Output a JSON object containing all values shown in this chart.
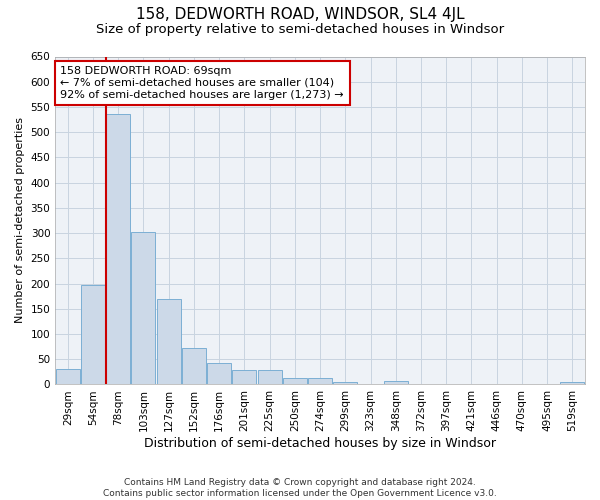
{
  "title": "158, DEDWORTH ROAD, WINDSOR, SL4 4JL",
  "subtitle": "Size of property relative to semi-detached houses in Windsor",
  "xlabel": "Distribution of semi-detached houses by size in Windsor",
  "ylabel": "Number of semi-detached properties",
  "bar_color": "#ccd9e8",
  "bar_edge_color": "#7bafd4",
  "vline_color": "#cc0000",
  "vline_x_index": 2,
  "annotation_text": "158 DEDWORTH ROAD: 69sqm\n← 7% of semi-detached houses are smaller (104)\n92% of semi-detached houses are larger (1,273) →",
  "annotation_box_color": "#ffffff",
  "annotation_box_edge": "#cc0000",
  "categories": [
    "29sqm",
    "54sqm",
    "78sqm",
    "103sqm",
    "127sqm",
    "152sqm",
    "176sqm",
    "201sqm",
    "225sqm",
    "250sqm",
    "274sqm",
    "299sqm",
    "323sqm",
    "348sqm",
    "372sqm",
    "397sqm",
    "421sqm",
    "446sqm",
    "470sqm",
    "495sqm",
    "519sqm"
  ],
  "values": [
    30,
    197,
    537,
    302,
    170,
    73,
    42,
    28,
    28,
    12,
    12,
    5,
    0,
    7,
    0,
    0,
    0,
    0,
    0,
    0,
    5
  ],
  "ylim": [
    0,
    650
  ],
  "yticks": [
    0,
    50,
    100,
    150,
    200,
    250,
    300,
    350,
    400,
    450,
    500,
    550,
    600,
    650
  ],
  "grid_color": "#c8d4e0",
  "background_color": "#eef2f7",
  "footer": "Contains HM Land Registry data © Crown copyright and database right 2024.\nContains public sector information licensed under the Open Government Licence v3.0.",
  "title_fontsize": 11,
  "subtitle_fontsize": 9.5,
  "xlabel_fontsize": 9,
  "ylabel_fontsize": 8,
  "tick_fontsize": 7.5,
  "footer_fontsize": 6.5
}
